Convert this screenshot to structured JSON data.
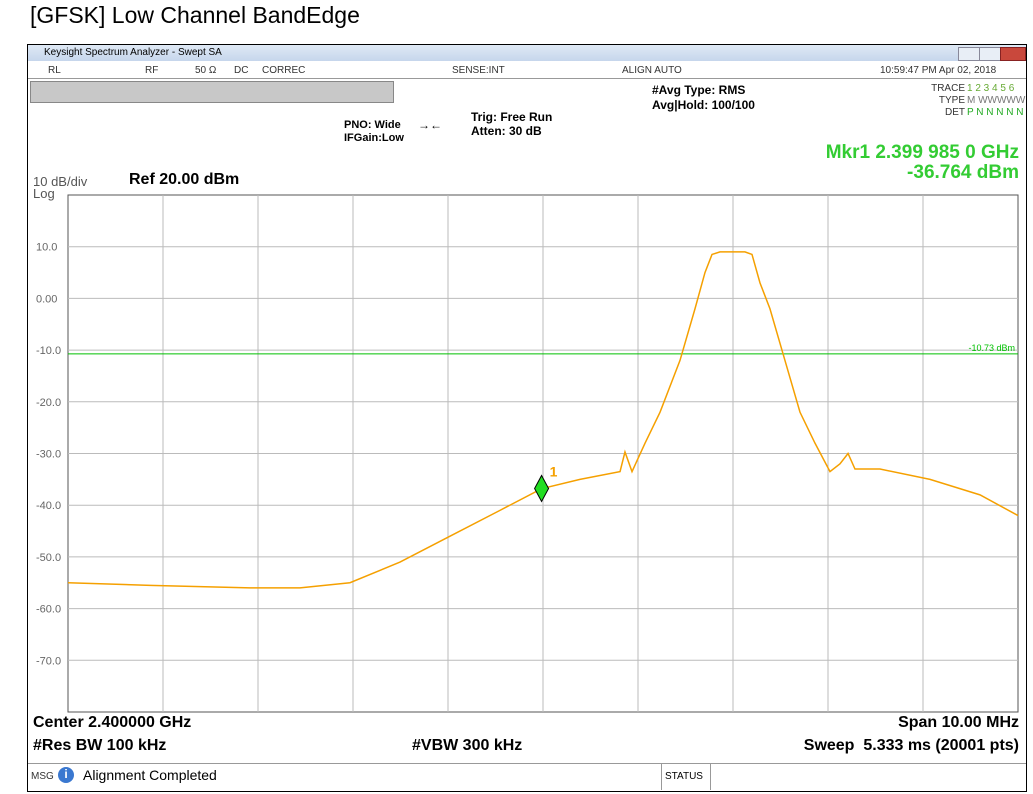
{
  "page_title": "[GFSK] Low Channel BandEdge",
  "window": {
    "title": "Keysight Spectrum Analyzer - Swept SA",
    "status_bar": [
      "RL",
      "RF",
      "50 Ω",
      "DC",
      "CORREC",
      "SENSE:INT",
      "ALIGN AUTO",
      "10:59:47 PM Apr 02, 2018"
    ]
  },
  "settings": {
    "pno": "PNO: Wide",
    "ifgain": "IFGain:Low",
    "trig": "Trig: Free Run",
    "atten": "Atten: 30 dB",
    "avg_type": "#Avg Type: RMS",
    "avg_hold": "Avg|Hold: 100/100",
    "trace_label": "TRACE",
    "trace_numbers": "1 2 3 4 5 6",
    "type_label": "TYPE",
    "type_value": "M WWWWW",
    "det_label": "DET",
    "det_value": "P N N N N N"
  },
  "marker_readout": {
    "line1": "Mkr1 2.399 985 0 GHz",
    "line2": "-36.764 dBm"
  },
  "scale": {
    "per_div": "10 dB/div",
    "mode": "Log",
    "ref": "Ref 20.00 dBm"
  },
  "footer": {
    "center": "Center 2.400000 GHz",
    "span": "Span 10.00 MHz",
    "rbw": "#Res BW 100 kHz",
    "vbw": "#VBW 300 kHz",
    "sweep": "Sweep  5.333 ms (20001 pts)",
    "msg": "MSG",
    "message": "Alignment Completed",
    "status": "STATUS"
  },
  "chart_data": {
    "type": "line",
    "xlim": [
      2.395,
      2.405
    ],
    "ylim": [
      -80,
      20
    ],
    "yticks": [
      {
        "value": 10,
        "label": "10.0"
      },
      {
        "value": 0,
        "label": "0.00"
      },
      {
        "value": -10,
        "label": "-10.0"
      },
      {
        "value": -20,
        "label": "-20.0"
      },
      {
        "value": -30,
        "label": "-30.0"
      },
      {
        "value": -40,
        "label": "-40.0"
      },
      {
        "value": -50,
        "label": "-50.0"
      },
      {
        "value": -60,
        "label": "-60.0"
      },
      {
        "value": -70,
        "label": "-70.0"
      }
    ],
    "grid": true,
    "display_line": {
      "value": -10.73,
      "label": "-10.73 dBm",
      "color": "#00c000"
    },
    "series": [
      {
        "color": "#f5a000",
        "x": [
          2.395,
          2.395863,
          2.396916,
          2.397442,
          2.397968,
          2.398495,
          2.399021,
          2.399547,
          2.399985,
          2.400389,
          2.400811,
          2.400863,
          2.400937,
          2.401074,
          2.401232,
          2.401442,
          2.4016,
          2.401705,
          2.401779,
          2.401863,
          2.402126,
          2.4022,
          2.402284,
          2.402389,
          2.402547,
          2.402705,
          2.402863,
          2.403021,
          2.403126,
          2.403211,
          2.403284,
          2.403547,
          2.404074,
          2.4046,
          2.405
        ],
        "values": [
          -55,
          -55.5,
          -56,
          -56,
          -55,
          -51,
          -46,
          -41,
          -36.8,
          -35,
          -33.5,
          -29.7,
          -33.5,
          -28,
          -22,
          -12,
          -2,
          5,
          8.5,
          9,
          9,
          8.5,
          3,
          -2,
          -12,
          -22,
          -28,
          -33.5,
          -32,
          -30,
          -33,
          -33,
          -35,
          -38,
          -42
        ]
      }
    ],
    "marker": {
      "label": "1",
      "x": 2.399985,
      "y": -36.764,
      "color": "#22dd22"
    }
  }
}
